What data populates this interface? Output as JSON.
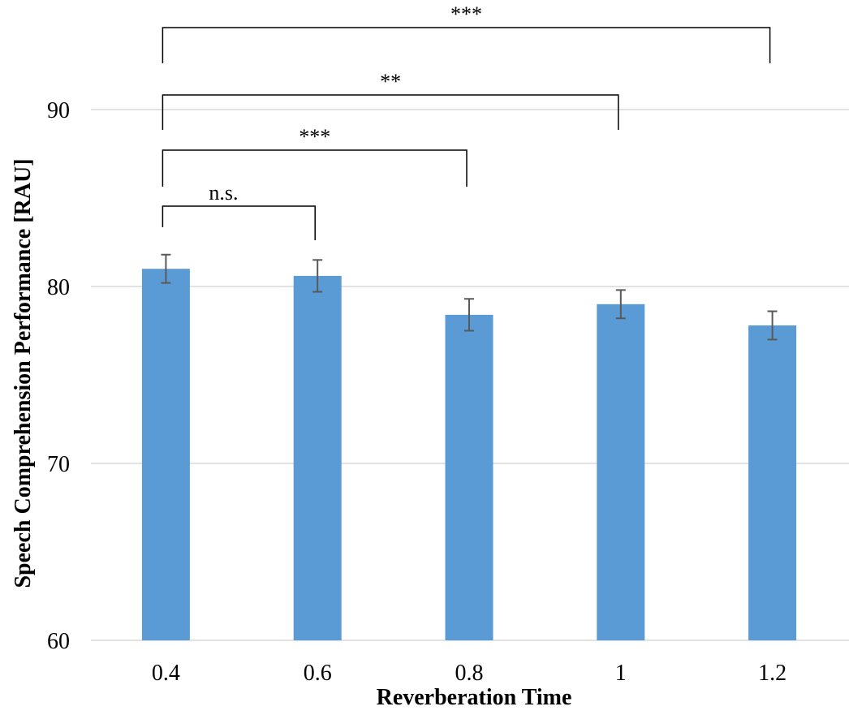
{
  "chart_data": {
    "type": "bar",
    "xlabel": "Reverberation Time",
    "ylabel": "Speech Comprehension Performance [RAU]",
    "categories": [
      "0.4",
      "0.6",
      "0.8",
      "1",
      "1.2"
    ],
    "values": [
      81.0,
      80.6,
      78.4,
      79.0,
      77.8
    ],
    "errors": [
      0.8,
      0.9,
      0.9,
      0.8,
      0.8
    ],
    "ylim": [
      60,
      90
    ],
    "yticks": [
      "60",
      "70",
      "80",
      "90"
    ],
    "grid": true,
    "bar_color": "#5b9bd5",
    "error_color": "#595959",
    "grid_color": "#d9d9d9",
    "significance": [
      {
        "from": "0.4",
        "to": "0.6",
        "label": "n.s."
      },
      {
        "from": "0.4",
        "to": "0.8",
        "label": "***"
      },
      {
        "from": "0.4",
        "to": "1",
        "label": "**"
      },
      {
        "from": "0.4",
        "to": "1.2",
        "label": "***"
      }
    ]
  }
}
